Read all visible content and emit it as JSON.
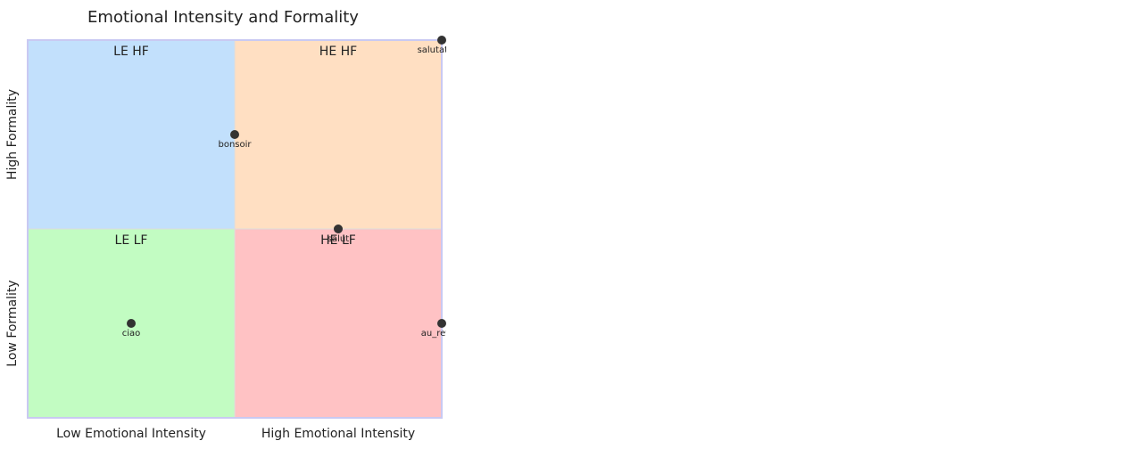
{
  "chart_data": {
    "type": "scatter",
    "title": "Emotional Intensity and Formality",
    "x_axis": {
      "low_label": "Low Emotional Intensity",
      "high_label": "High Emotional Intensity",
      "range": [
        0,
        1
      ]
    },
    "y_axis": {
      "low_label": "Low Formality",
      "high_label": "High Formality",
      "range": [
        0,
        1
      ]
    },
    "quadrants": [
      {
        "label": "LE HF",
        "x_range": [
          0,
          0.5
        ],
        "y_range": [
          0.5,
          1
        ],
        "color": "#c2e0fc"
      },
      {
        "label": "HE HF",
        "x_range": [
          0.5,
          1
        ],
        "y_range": [
          0.5,
          1
        ],
        "color": "#ffdfc2"
      },
      {
        "label": "LE LF",
        "x_range": [
          0,
          0.5
        ],
        "y_range": [
          0,
          0.5
        ],
        "color": "#c2fcc2"
      },
      {
        "label": "HE LF",
        "x_range": [
          0.5,
          1
        ],
        "y_range": [
          0,
          0.5
        ],
        "color": "#ffc2c4"
      }
    ],
    "points": [
      {
        "label": "salutations",
        "x": 1.0,
        "y": 1.0
      },
      {
        "label": "bonsoir",
        "x": 0.5,
        "y": 0.75
      },
      {
        "label": "salut",
        "x": 0.75,
        "y": 0.5
      },
      {
        "label": "ciao",
        "x": 0.25,
        "y": 0.25
      },
      {
        "label": "au_revoir",
        "x": 1.0,
        "y": 0.25
      }
    ],
    "border_color": "#c9c9f2",
    "point_color": "#333333"
  }
}
